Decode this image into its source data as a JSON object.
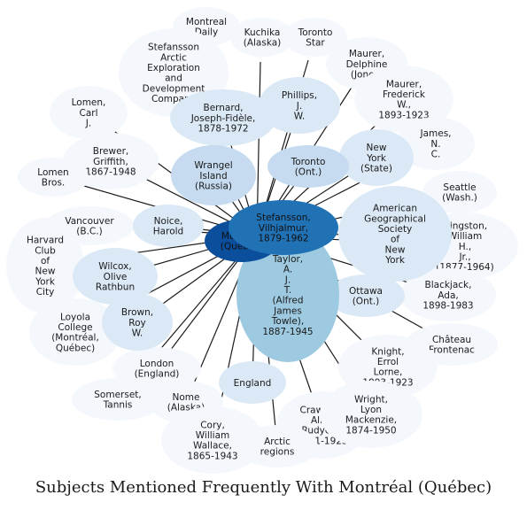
{
  "caption": "Subjects Mentioned Frequently With Montréal (Québec)",
  "center_label": [
    "Montréal",
    "(Québec)"
  ],
  "nodes": [
    {
      "id": "montreal-daily",
      "lines": [
        "Montreal",
        "Daily"
      ],
      "shade": "faint"
    },
    {
      "id": "kuchika",
      "lines": [
        "Kuchika",
        "(Alaska)"
      ],
      "shade": "faint"
    },
    {
      "id": "toronto-star",
      "lines": [
        "Toronto",
        "Star"
      ],
      "shade": "faint"
    },
    {
      "id": "stefansson-company",
      "lines": [
        "Stefansson",
        "Arctic",
        "Exploration",
        "and",
        "Development",
        "Company"
      ],
      "shade": "faint"
    },
    {
      "id": "maurer-delphine",
      "lines": [
        "Maurer,",
        "Delphine",
        "(Jones)"
      ],
      "shade": "faint"
    },
    {
      "id": "bernard",
      "lines": [
        "Bernard,",
        "Joseph-Fidèle,",
        "1878-1972"
      ],
      "shade": "light"
    },
    {
      "id": "phillips",
      "lines": [
        "Phillips,",
        "J.",
        "W."
      ],
      "shade": "light"
    },
    {
      "id": "maurer-frederick",
      "lines": [
        "Maurer,",
        "Frederick",
        "W.,",
        "1893-1923"
      ],
      "shade": "faint"
    },
    {
      "id": "lomen-carl",
      "lines": [
        "Lomen,",
        "Carl",
        "J."
      ],
      "shade": "faint"
    },
    {
      "id": "james",
      "lines": [
        "James,",
        "N.",
        "C."
      ],
      "shade": "faint"
    },
    {
      "id": "brewer",
      "lines": [
        "Brewer,",
        "Griffith,",
        "1867-1948"
      ],
      "shade": "faint"
    },
    {
      "id": "wrangel",
      "lines": [
        "Wrangel",
        "Island",
        "(Russia)"
      ],
      "shade": "mid"
    },
    {
      "id": "toronto-ont",
      "lines": [
        "Toronto",
        "(Ont.)"
      ],
      "shade": "mid"
    },
    {
      "id": "new-york-state",
      "lines": [
        "New",
        "York",
        "(State)"
      ],
      "shade": "light"
    },
    {
      "id": "lomen-bros",
      "lines": [
        "Lomen",
        "Bros."
      ],
      "shade": "faint"
    },
    {
      "id": "seattle",
      "lines": [
        "Seattle",
        "(Wash.)"
      ],
      "shade": "faint"
    },
    {
      "id": "vancouver",
      "lines": [
        "Vancouver",
        "(B.C.)"
      ],
      "shade": "faint"
    },
    {
      "id": "noice",
      "lines": [
        "Noice,",
        "Harold"
      ],
      "shade": "light"
    },
    {
      "id": "stefansson-vilhjalmur",
      "lines": [
        "Stefansson,",
        "Vilhjalmur,",
        "1879-1962"
      ],
      "shade": "strong"
    },
    {
      "id": "american-geographical",
      "lines": [
        "American",
        "Geographical",
        "Society",
        "of",
        "New",
        "York"
      ],
      "shade": "light"
    },
    {
      "id": "harvard-club",
      "lines": [
        "Harvard",
        "Club",
        "of",
        "New",
        "York",
        "City"
      ],
      "shade": "faint"
    },
    {
      "id": "hingston",
      "lines": [
        "Hingston,",
        "William",
        "H.,",
        "Jr.,",
        "(1877-1964)"
      ],
      "shade": "faint"
    },
    {
      "id": "wilcox",
      "lines": [
        "Wilcox,",
        "Olive",
        "Rathbun"
      ],
      "shade": "light"
    },
    {
      "id": "taylor",
      "lines": [
        "Taylor,",
        "A.",
        "J.",
        "T.",
        "(Alfred",
        "James",
        "Towle),",
        "1887-1945"
      ],
      "shade": "sky"
    },
    {
      "id": "ottawa",
      "lines": [
        "Ottawa",
        "(Ont.)"
      ],
      "shade": "light"
    },
    {
      "id": "blackjack",
      "lines": [
        "Blackjack,",
        "Ada,",
        "1898-1983"
      ],
      "shade": "faint"
    },
    {
      "id": "loyola",
      "lines": [
        "Loyola",
        "College",
        "(Montréal,",
        "Québec)"
      ],
      "shade": "faint"
    },
    {
      "id": "brown",
      "lines": [
        "Brown,",
        "Roy",
        "W."
      ],
      "shade": "light"
    },
    {
      "id": "chateau",
      "lines": [
        "Château",
        "Frontenac"
      ],
      "shade": "faint"
    },
    {
      "id": "london",
      "lines": [
        "London",
        "(England)"
      ],
      "shade": "faint"
    },
    {
      "id": "knight",
      "lines": [
        "Knight,",
        "Errol",
        "Lorne,",
        "1893-1923"
      ],
      "shade": "faint"
    },
    {
      "id": "somerset",
      "lines": [
        "Somerset,",
        "Tannis"
      ],
      "shade": "faint"
    },
    {
      "id": "nome",
      "lines": [
        "Nome",
        "(Alaska)"
      ],
      "shade": "faint"
    },
    {
      "id": "england",
      "lines": [
        "England"
      ],
      "shade": "light"
    },
    {
      "id": "crawford",
      "lines": [
        "Crawford,",
        "Allan",
        "Rudyerd,",
        "1901-1923"
      ],
      "shade": "faint"
    },
    {
      "id": "mackenzie",
      "lines": [
        "Wright,",
        "Lyon",
        "Mackenzie,",
        "1874-1950"
      ],
      "shade": "faint"
    },
    {
      "id": "cory",
      "lines": [
        "Cory,",
        "William",
        "Wallace,",
        "1865-1943"
      ],
      "shade": "faint"
    },
    {
      "id": "arctic-regions",
      "lines": [
        "Arctic",
        "regions"
      ],
      "shade": "faint"
    }
  ],
  "colors": {
    "center": "#0b4f9c",
    "strong": "#2171b5",
    "sky": "#9ecae1",
    "mid": "#c6dbef",
    "light": "#dbe9f6",
    "faint": "#f4f8fd",
    "edge": "#1a1a1a"
  }
}
